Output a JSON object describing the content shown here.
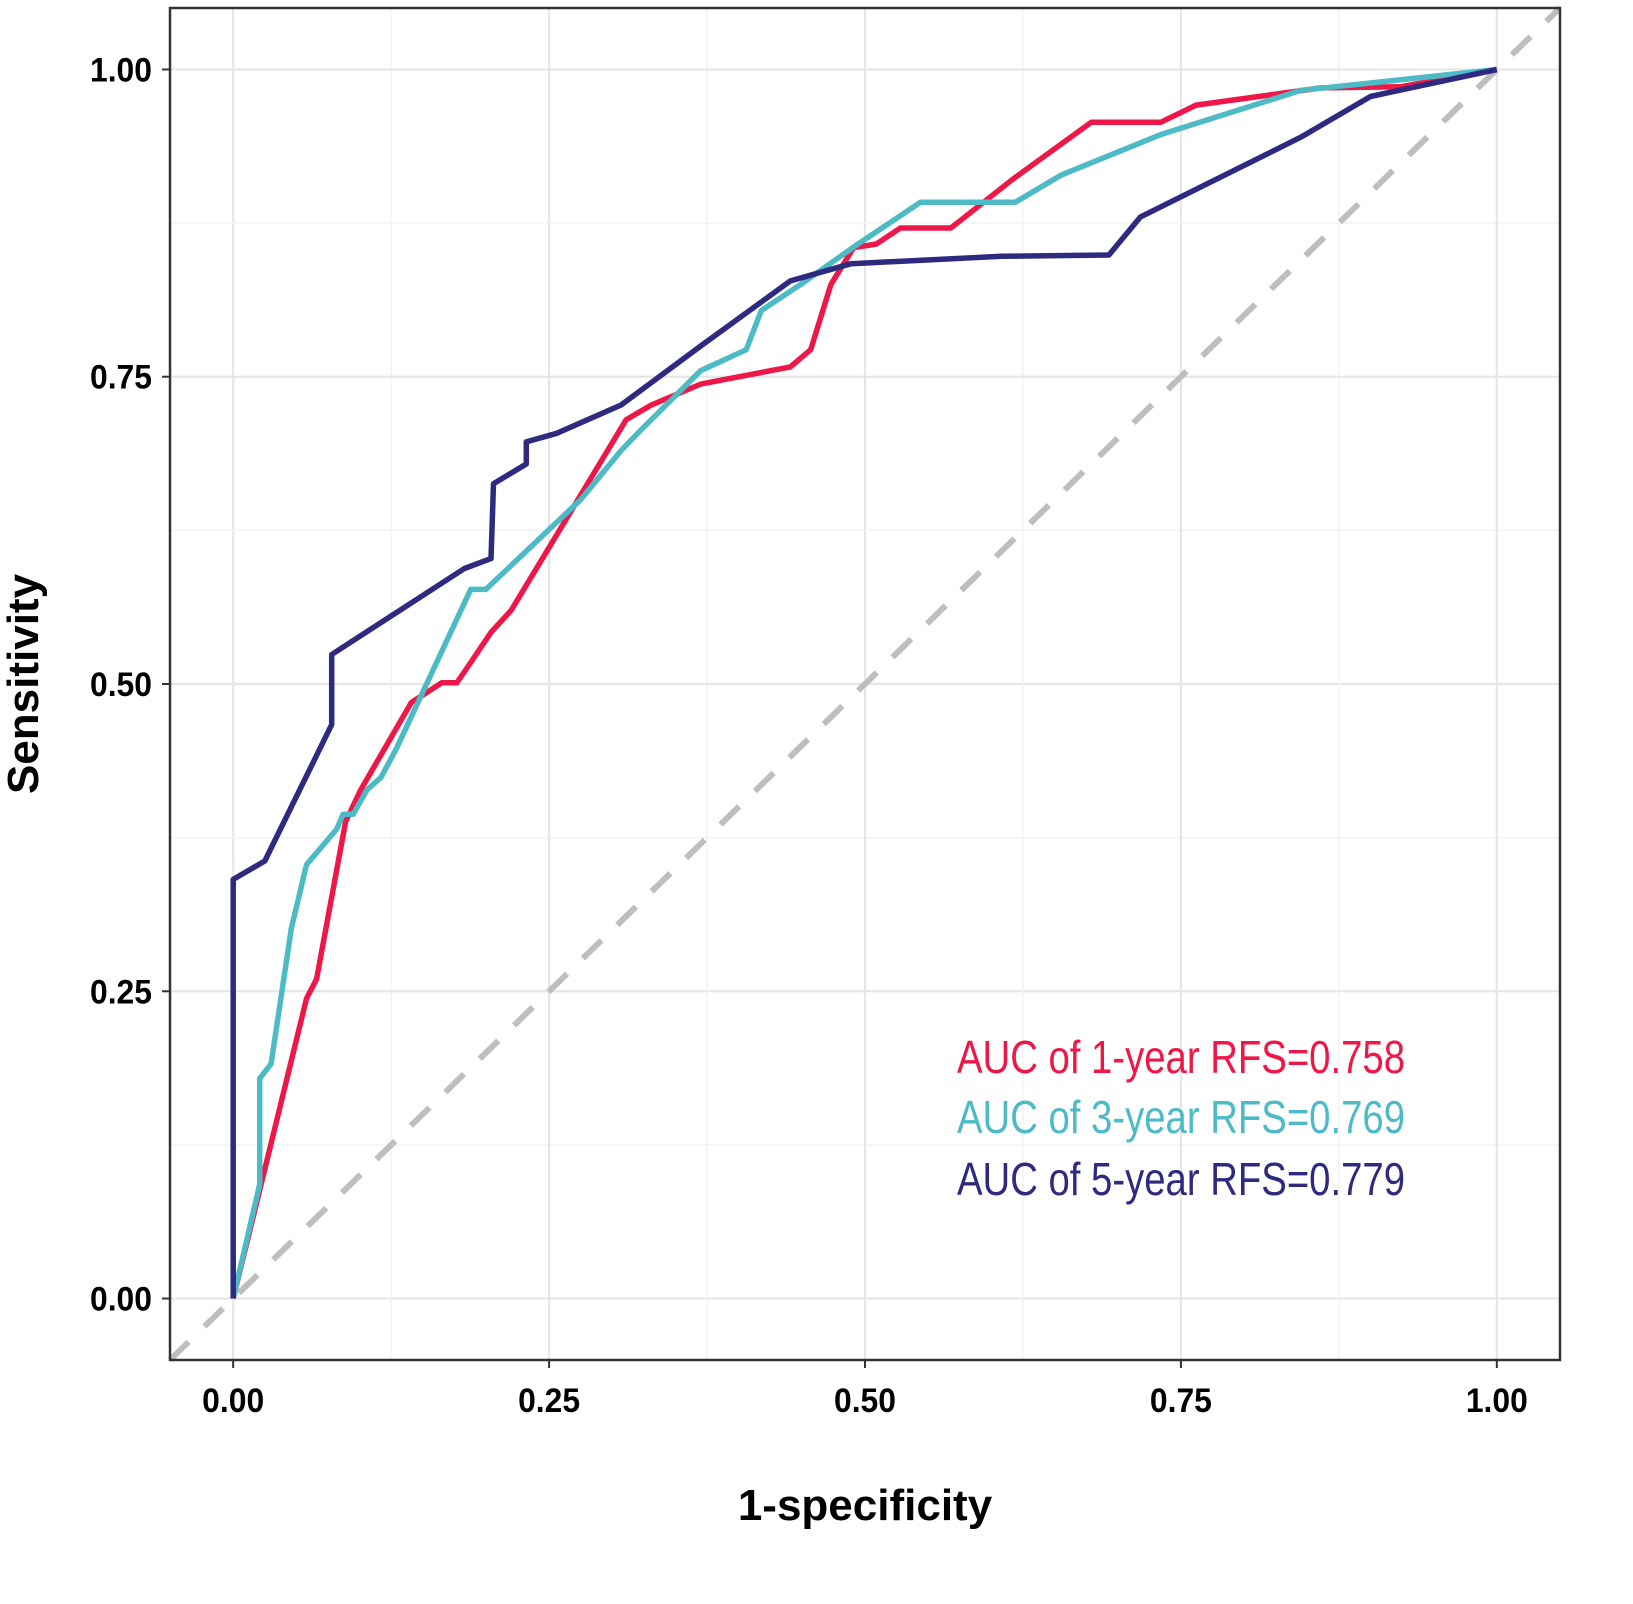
{
  "chart_data": {
    "type": "line",
    "title": "",
    "xlabel": "1-specificity",
    "ylabel": "Sensitivity",
    "xlim": [
      -0.05,
      1.05
    ],
    "ylim": [
      -0.05,
      1.05
    ],
    "xticks": [
      "0.00",
      "0.25",
      "0.50",
      "0.75",
      "1.00"
    ],
    "yticks": [
      "0.00",
      "0.25",
      "0.50",
      "0.75",
      "1.00"
    ],
    "grid": true,
    "legend_placement": "bottom-right",
    "reference_line": {
      "name": "diagonal",
      "x": [
        -0.05,
        1.05
      ],
      "y": [
        -0.05,
        1.05
      ],
      "color": "#BEBEBE",
      "style": "dashed"
    },
    "series": [
      {
        "name": "AUC of 1-year RFS=0.758",
        "color": "#EE1848",
        "x": [
          0,
          0.058,
          0.066,
          0.089,
          0.101,
          0.141,
          0.165,
          0.177,
          0.185,
          0.204,
          0.22,
          0.311,
          0.331,
          0.37,
          0.441,
          0.457,
          0.473,
          0.491,
          0.509,
          0.528,
          0.568,
          0.616,
          0.679,
          0.734,
          0.762,
          0.861,
          0.924,
          1
        ],
        "y": [
          0,
          0.244,
          0.26,
          0.388,
          0.414,
          0.485,
          0.501,
          0.501,
          0.513,
          0.542,
          0.56,
          0.715,
          0.727,
          0.744,
          0.758,
          0.772,
          0.825,
          0.855,
          0.858,
          0.871,
          0.871,
          0.91,
          0.957,
          0.957,
          0.971,
          0.985,
          0.986,
          1
        ]
      },
      {
        "name": "AUC of 3-year RFS=0.769",
        "color": "#4DBBC5",
        "x": [
          0,
          0.021,
          0.021,
          0.03,
          0.046,
          0.058,
          0.082,
          0.087,
          0.095,
          0.106,
          0.117,
          0.129,
          0.188,
          0.2,
          0.275,
          0.307,
          0.323,
          0.37,
          0.406,
          0.418,
          0.449,
          0.493,
          0.544,
          0.619,
          0.655,
          0.734,
          0.845,
          0.9,
          1
        ],
        "y": [
          0,
          0.093,
          0.179,
          0.191,
          0.301,
          0.353,
          0.382,
          0.394,
          0.394,
          0.414,
          0.424,
          0.447,
          0.577,
          0.577,
          0.65,
          0.69,
          0.707,
          0.755,
          0.772,
          0.804,
          0.825,
          0.857,
          0.892,
          0.892,
          0.914,
          0.947,
          0.983,
          0.989,
          1
        ]
      },
      {
        "name": "AUC of 5-year RFS=0.779",
        "color": "#2E2A80",
        "x": [
          0,
          0,
          0.025,
          0.078,
          0.078,
          0.183,
          0.204,
          0.206,
          0.232,
          0.232,
          0.256,
          0.307,
          0.37,
          0.441,
          0.489,
          0.608,
          0.693,
          0.718,
          0.845,
          0.9,
          1
        ],
        "y": [
          0,
          0.341,
          0.356,
          0.467,
          0.524,
          0.594,
          0.602,
          0.663,
          0.679,
          0.697,
          0.704,
          0.727,
          0.775,
          0.828,
          0.842,
          0.848,
          0.849,
          0.88,
          0.945,
          0.978,
          1
        ]
      }
    ]
  }
}
